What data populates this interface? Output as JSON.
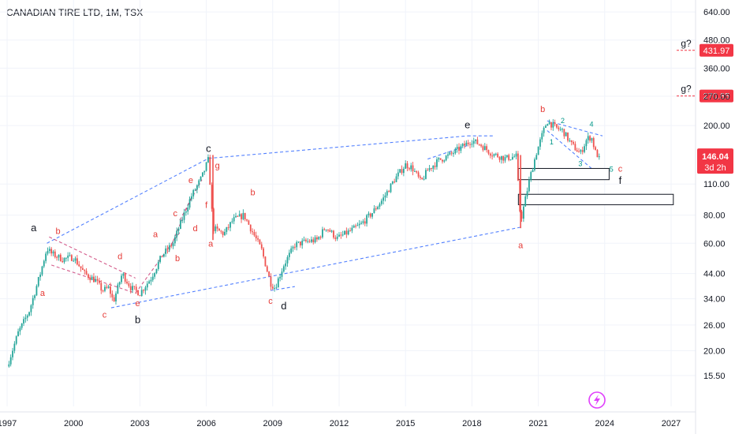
{
  "title": "CANADIAN TIRE LTD, 1M, TSX",
  "colors": {
    "up": "#26a69a",
    "down": "#ef5350",
    "trend": "#2962ff",
    "dashed_pink": "#c2185b",
    "wave_red": "#e53935",
    "wave_black": "#131722",
    "wave_teal": "#009688",
    "tag_red": "#f23645"
  },
  "chart_data": {
    "type": "candlestick",
    "y_scale": "log",
    "ylim": [
      13.5,
      700
    ],
    "xlim": [
      1997.0,
      2028.0
    ],
    "y_ticks": [
      "640.00",
      "480.00",
      "360.00",
      "270.00",
      "200.00",
      "110.00",
      "80.00",
      "60.00",
      "44.00",
      "34.00",
      "26.00",
      "20.00",
      "15.50"
    ],
    "x_ticks": [
      "1997",
      "2000",
      "2003",
      "2006",
      "2009",
      "2012",
      "2015",
      "2018",
      "2021",
      "2024",
      "2027"
    ],
    "price_path": [
      [
        1997.0,
        17
      ],
      [
        1997.5,
        24
      ],
      [
        1998.0,
        30
      ],
      [
        1998.5,
        44
      ],
      [
        1998.8,
        57
      ],
      [
        1999.0,
        54
      ],
      [
        1999.5,
        51
      ],
      [
        2000.0,
        52
      ],
      [
        2000.5,
        44
      ],
      [
        2001.0,
        41
      ],
      [
        2001.3,
        37
      ],
      [
        2001.6,
        38
      ],
      [
        2001.8,
        33
      ],
      [
        2002.2,
        44
      ],
      [
        2002.6,
        38
      ],
      [
        2003.0,
        36
      ],
      [
        2003.5,
        42
      ],
      [
        2004.0,
        53
      ],
      [
        2004.5,
        60
      ],
      [
        2004.8,
        72
      ],
      [
        2005.3,
        96
      ],
      [
        2005.8,
        118
      ],
      [
        2006.1,
        142
      ],
      [
        2006.3,
        70
      ],
      [
        2006.8,
        66
      ],
      [
        2007.2,
        76
      ],
      [
        2007.7,
        80
      ],
      [
        2008.0,
        70
      ],
      [
        2008.5,
        56
      ],
      [
        2008.9,
        40
      ],
      [
        2009.1,
        38
      ],
      [
        2009.5,
        48
      ],
      [
        2010.0,
        59
      ],
      [
        2010.5,
        61
      ],
      [
        2011.0,
        62
      ],
      [
        2011.4,
        71
      ],
      [
        2011.9,
        63
      ],
      [
        2012.5,
        68
      ],
      [
        2013.0,
        73
      ],
      [
        2013.5,
        82
      ],
      [
        2014.0,
        95
      ],
      [
        2014.5,
        115
      ],
      [
        2015.0,
        134
      ],
      [
        2015.3,
        130
      ],
      [
        2015.7,
        112
      ],
      [
        2016.0,
        127
      ],
      [
        2016.5,
        140
      ],
      [
        2017.0,
        148
      ],
      [
        2017.6,
        162
      ],
      [
        2018.0,
        172
      ],
      [
        2018.4,
        164
      ],
      [
        2018.9,
        150
      ],
      [
        2019.5,
        143
      ],
      [
        2020.0,
        146
      ],
      [
        2020.2,
        75
      ],
      [
        2020.6,
        115
      ],
      [
        2020.9,
        150
      ],
      [
        2021.2,
        185
      ],
      [
        2021.4,
        210
      ],
      [
        2021.8,
        195
      ],
      [
        2022.1,
        190
      ],
      [
        2022.5,
        165
      ],
      [
        2022.9,
        150
      ],
      [
        2023.2,
        175
      ],
      [
        2023.4,
        178
      ],
      [
        2023.6,
        150
      ],
      [
        2023.75,
        146
      ]
    ],
    "last_price": 146.04,
    "countdown": "3d 2h",
    "level_tags": [
      {
        "label": "431.97",
        "value": 431.97,
        "note": "g?"
      },
      {
        "label": "270.85",
        "value": 270.85,
        "note": "g?"
      }
    ],
    "trend_lines": [
      {
        "from": [
          1998.8,
          60
        ],
        "to": [
          2006.1,
          143
        ],
        "color": "blue"
      },
      {
        "from": [
          2006.1,
          143
        ],
        "to": [
          2017.8,
          180
        ],
        "color": "blue"
      },
      {
        "from": [
          2001.7,
          31
        ],
        "to": [
          2020.3,
          71
        ],
        "color": "blue"
      },
      {
        "from": [
          2008.9,
          37
        ],
        "to": [
          2010.0,
          38.5
        ],
        "color": "blue"
      },
      {
        "from": [
          2017.8,
          180
        ],
        "to": [
          2019.0,
          180
        ],
        "color": "blue"
      },
      {
        "from": [
          2021.4,
          210
        ],
        "to": [
          2023.9,
          180
        ],
        "color": "blue"
      },
      {
        "from": [
          2021.4,
          190
        ],
        "to": [
          2024.0,
          115
        ],
        "color": "blue"
      },
      {
        "from": [
          2016.0,
          142
        ],
        "to": [
          2017.8,
          163
        ],
        "color": "blue"
      },
      {
        "from": [
          1998.9,
          64
        ],
        "to": [
          2002.8,
          42
        ],
        "color": "pink"
      },
      {
        "from": [
          1999.0,
          48
        ],
        "to": [
          2002.8,
          36
        ],
        "color": "pink"
      },
      {
        "from": [
          2002.8,
          36
        ],
        "to": [
          2004.8,
          67
        ],
        "color": "pink"
      },
      {
        "from": [
          2004.3,
          55
        ],
        "to": [
          2005.3,
          95
        ],
        "color": "pink"
      },
      {
        "from": [
          2004.8,
          76
        ],
        "to": [
          2005.8,
          115
        ],
        "color": "pink"
      }
    ],
    "zones": [
      {
        "x": [
          2020.1,
          2024.2
        ],
        "y": [
          115,
          129
        ]
      },
      {
        "x": [
          2020.1,
          2027.1
        ],
        "y": [
          89,
          99
        ]
      }
    ],
    "wave_labels": [
      {
        "text": "a",
        "x": 1998.2,
        "y": 68,
        "color": "black",
        "size": 13
      },
      {
        "text": "a",
        "x": 1998.6,
        "y": 35,
        "color": "red",
        "size": 11
      },
      {
        "text": "b",
        "x": 1999.3,
        "y": 66,
        "color": "red",
        "size": 11
      },
      {
        "text": "c",
        "x": 2001.4,
        "y": 28,
        "color": "red",
        "size": 11
      },
      {
        "text": "d",
        "x": 2002.1,
        "y": 51,
        "color": "red",
        "size": 11
      },
      {
        "text": "e",
        "x": 2002.9,
        "y": 31.5,
        "color": "red",
        "size": 11
      },
      {
        "text": "b",
        "x": 2002.9,
        "y": 26.5,
        "color": "black",
        "size": 13
      },
      {
        "text": "a",
        "x": 2003.7,
        "y": 64,
        "color": "red",
        "size": 11
      },
      {
        "text": "b",
        "x": 2004.7,
        "y": 50,
        "color": "red",
        "size": 11
      },
      {
        "text": "c",
        "x": 2004.6,
        "y": 79,
        "color": "red",
        "size": 11
      },
      {
        "text": "d",
        "x": 2005.5,
        "y": 68,
        "color": "red",
        "size": 11
      },
      {
        "text": "e",
        "x": 2005.3,
        "y": 111,
        "color": "red",
        "size": 11
      },
      {
        "text": "f",
        "x": 2006.0,
        "y": 86,
        "color": "red",
        "size": 11
      },
      {
        "text": "c",
        "x": 2006.1,
        "y": 153,
        "color": "black",
        "size": 13
      },
      {
        "text": "g",
        "x": 2006.5,
        "y": 129,
        "color": "red",
        "size": 11
      },
      {
        "text": "a",
        "x": 2006.2,
        "y": 58,
        "color": "red",
        "size": 11
      },
      {
        "text": "b",
        "x": 2008.1,
        "y": 98,
        "color": "red",
        "size": 11
      },
      {
        "text": "c",
        "x": 2008.9,
        "y": 32.3,
        "color": "red",
        "size": 11
      },
      {
        "text": "d",
        "x": 2009.5,
        "y": 30.5,
        "color": "black",
        "size": 13
      },
      {
        "text": "e",
        "x": 2017.8,
        "y": 195,
        "color": "black",
        "size": 13
      },
      {
        "text": "a",
        "x": 2020.2,
        "y": 57,
        "color": "red",
        "size": 11
      },
      {
        "text": "b",
        "x": 2021.2,
        "y": 230,
        "color": "red",
        "size": 11
      },
      {
        "text": "1",
        "x": 2021.6,
        "y": 165,
        "color": "teal",
        "size": 9
      },
      {
        "text": "2",
        "x": 2022.1,
        "y": 205,
        "color": "teal",
        "size": 9
      },
      {
        "text": "3",
        "x": 2022.9,
        "y": 132,
        "color": "teal",
        "size": 9
      },
      {
        "text": "4",
        "x": 2023.4,
        "y": 198,
        "color": "teal",
        "size": 9
      },
      {
        "text": "5",
        "x": 2024.3,
        "y": 125,
        "color": "teal",
        "size": 9
      },
      {
        "text": "c",
        "x": 2024.7,
        "y": 125,
        "color": "red",
        "size": 11
      },
      {
        "text": "f",
        "x": 2024.7,
        "y": 110,
        "color": "black",
        "size": 13
      }
    ]
  }
}
